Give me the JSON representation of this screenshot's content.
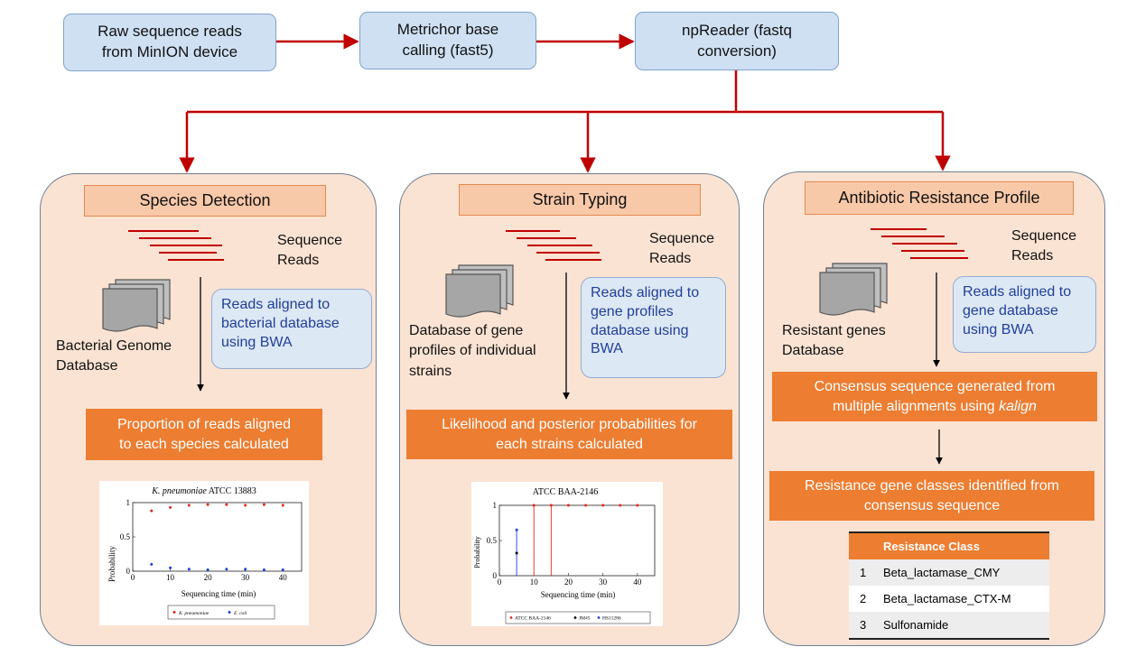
{
  "pipeline": {
    "raw_reads": "Raw sequence reads\nfrom MinION device",
    "base_calling": "Metrichor base\ncalling (fast5)",
    "npreader": "npReader (fastq\nconversion)"
  },
  "panels": {
    "species": {
      "title": "Species Detection",
      "reads_label": "Sequence\nReads",
      "db_label": "Bacterial Genome\nDatabase",
      "note": "Reads aligned to\nbacterial database\nusing BWA",
      "result": "Proportion of reads aligned\nto each species calculated"
    },
    "strain": {
      "title": "Strain Typing",
      "reads_label": "Sequence\nReads",
      "db_label": "Database of gene\nprofiles of individual\nstrains",
      "note": "Reads aligned to\ngene profiles\ndatabase using\nBWA",
      "result": "Likelihood and posterior probabilities for\neach strains calculated"
    },
    "resistance": {
      "title": "Antibiotic Resistance Profile",
      "reads_label": "Sequence\nReads",
      "db_label": "Resistant genes\nDatabase",
      "note": "Reads aligned to\ngene database\nusing BWA",
      "consensus_pre": "Consensus sequence generated  from\nmultiple alignments using ",
      "consensus_em": "kalign",
      "result": "Resistance gene classes identified from\nconsensus sequence",
      "table": {
        "header": "Resistance Class",
        "rows": [
          {
            "n": "1",
            "name": "Beta_lactamase_CMY"
          },
          {
            "n": "2",
            "name": "Beta_lactamase_CTX-M"
          },
          {
            "n": "3",
            "name": "Sulfonamide"
          }
        ]
      }
    }
  },
  "colors": {
    "arrow": "#c00000",
    "read_lines": "#c00000",
    "species_red": "#e8251c",
    "species_blue": "#1f3fe0",
    "strain_red": "#e8251c",
    "strain_blue": "#1f3fe0",
    "strain_black": "#000000"
  },
  "chart_data": [
    {
      "type": "scatter",
      "title_italic": "K. pneumoniae",
      "title_rest": " ATCC 13883",
      "xlabel": "Sequencing time (min)",
      "ylabel": "Probability",
      "xlim": [
        0,
        45
      ],
      "ylim": [
        0,
        1
      ],
      "xticks": [
        0,
        10,
        20,
        30,
        40
      ],
      "yticks": [
        0,
        0.5,
        1
      ],
      "ytick_labels": [
        "0",
        "0.5",
        "1"
      ],
      "grid": false,
      "legend_position": "bottom",
      "series": [
        {
          "name": "K. pneumoniae",
          "color_key": "species_red",
          "x": [
            5,
            10,
            15,
            20,
            25,
            30,
            35,
            40
          ],
          "y": [
            0.88,
            0.93,
            0.96,
            0.97,
            0.97,
            0.96,
            0.97,
            0.96
          ]
        },
        {
          "name": "E. coli",
          "color_key": "species_blue",
          "x": [
            5,
            10,
            15,
            20,
            25,
            30,
            35,
            40
          ],
          "y": [
            0.1,
            0.05,
            0.03,
            0.02,
            0.03,
            0.03,
            0.02,
            0.02
          ]
        }
      ]
    },
    {
      "type": "scatter",
      "title": "ATCC BAA-2146",
      "xlabel": "Sequencing time (min)",
      "ylabel": "Probability",
      "xlim": [
        0,
        45
      ],
      "ylim": [
        0,
        1
      ],
      "xticks": [
        0,
        10,
        20,
        30,
        40
      ],
      "yticks": [
        0,
        0.5,
        1
      ],
      "ytick_labels": [
        "0",
        "0.5",
        "1"
      ],
      "grid": false,
      "legend_position": "bottom",
      "series": [
        {
          "name": "ATCC BAA-2146",
          "color_key": "strain_red",
          "x": [
            10,
            15,
            20,
            25,
            30,
            35,
            40
          ],
          "y": [
            1,
            1,
            1,
            1,
            1,
            1,
            1
          ]
        },
        {
          "name": "JM45",
          "color_key": "strain_black",
          "x": [
            5
          ],
          "y": [
            0.32
          ]
        },
        {
          "name": "HS11286",
          "color_key": "strain_blue",
          "x": [
            5
          ],
          "y": [
            0.65
          ]
        }
      ]
    }
  ]
}
